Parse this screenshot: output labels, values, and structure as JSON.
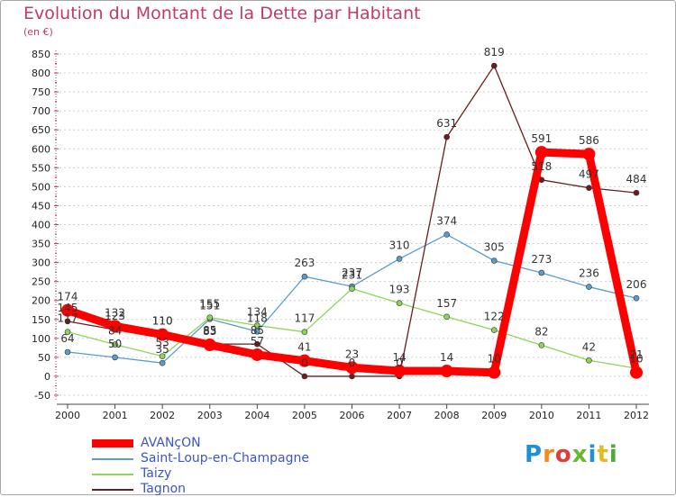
{
  "header": {
    "title": "Evolution du Montant de la Dette par Habitant",
    "subtitle": "(en €)"
  },
  "logo": {
    "text": "Proxiti",
    "colors": [
      "#1e90d6",
      "#f08c1e",
      "#e03c3c",
      "#6ab82e",
      "#1e90d6",
      "#e8b820",
      "#4caa3c"
    ]
  },
  "chart_data": {
    "type": "line",
    "x": [
      "2000",
      "2001",
      "2002",
      "2003",
      "2004",
      "2005",
      "2006",
      "2007",
      "2008",
      "2009",
      "2010",
      "2011",
      "2012"
    ],
    "ylim": [
      -50,
      850
    ],
    "yticks": [
      -50,
      0,
      50,
      100,
      150,
      200,
      250,
      300,
      350,
      400,
      450,
      500,
      550,
      600,
      650,
      700,
      750,
      800,
      850
    ],
    "grid": "horizontal dashed",
    "legend_position": "bottom-left",
    "series": [
      {
        "name": "AVANçON",
        "color": "#ff0000",
        "emphasis": true,
        "values": [
          174,
          132,
          110,
          83,
          57,
          41,
          23,
          14,
          14,
          10,
          591,
          586,
          10
        ],
        "labels": [
          "174",
          "132",
          "110",
          "83",
          "57",
          "41",
          "23",
          "14",
          "14",
          "10",
          "591",
          "586",
          "10"
        ]
      },
      {
        "name": "Saint-Loup-en-Champagne",
        "color": "#5b9ccc",
        "values": [
          64,
          50,
          35,
          151,
          118,
          263,
          237,
          310,
          374,
          305,
          273,
          236,
          206
        ],
        "labels": [
          "64",
          "50",
          "35",
          "151",
          "118",
          "263",
          "237",
          "310",
          "374",
          "305",
          "273",
          "236",
          "206"
        ]
      },
      {
        "name": "Taizy",
        "color": "#8ed45a",
        "values": [
          117,
          84,
          53,
          155,
          134,
          117,
          231,
          193,
          157,
          122,
          82,
          42,
          21
        ],
        "labels": [
          "117",
          "84",
          "53",
          "155",
          "134",
          "117",
          "231",
          "193",
          "157",
          "122",
          "82",
          "42",
          "21"
        ]
      },
      {
        "name": "Tagnon",
        "color": "#6b1c1c",
        "values": [
          145,
          123,
          110,
          85,
          85,
          0,
          0,
          0,
          631,
          819,
          518,
          497,
          484
        ],
        "labels": [
          "145",
          "123",
          "110",
          "85",
          "85",
          "0",
          "0",
          "0",
          "631",
          "819",
          "518",
          "497",
          "484"
        ]
      }
    ]
  }
}
